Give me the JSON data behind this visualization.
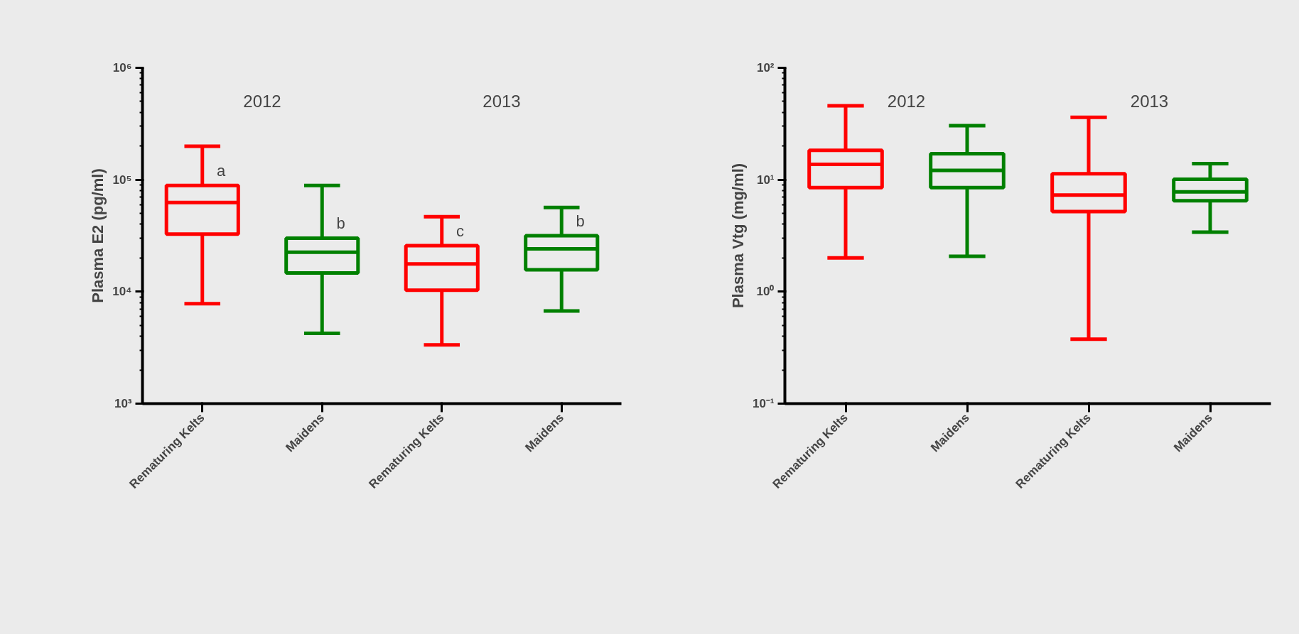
{
  "chart_data": [
    {
      "type": "box",
      "ylabel": "Plasma E2 (pg/ml)",
      "log": "y",
      "grid": false,
      "categories": [
        "Rematuring Kelts",
        "Maidens",
        "Rematuring Kelts",
        "Maidens"
      ],
      "colors": [
        "#ff0000",
        "#008000",
        "#ff0000",
        "#008000"
      ],
      "boxes": [
        {
          "low": 7800,
          "q1": 32700,
          "median": 62500,
          "q3": 89000,
          "high": 199000
        },
        {
          "low": 4250,
          "q1": 14700,
          "median": 22500,
          "q3": 30100,
          "high": 89000
        },
        {
          "low": 3350,
          "q1": 10300,
          "median": 17700,
          "q3": 25800,
          "high": 46800
        },
        {
          "low": 6730,
          "q1": 15700,
          "median": 24100,
          "q3": 31600,
          "high": 56500
        }
      ],
      "ylim": [
        1000,
        1000000
      ],
      "yticks": [
        {
          "value": 1000,
          "label": "10³"
        },
        {
          "value": 10000,
          "label": "10⁴"
        },
        {
          "value": 100000,
          "label": "10⁵"
        },
        {
          "value": 1000000,
          "label": "10⁶"
        }
      ],
      "annotations": [
        "2012",
        "2013",
        "a",
        "b",
        "c",
        "b"
      ]
    },
    {
      "type": "box",
      "ylabel": "Plasma Vtg (mg/ml)",
      "log": "y",
      "grid": false,
      "categories": [
        "Rematuring Kelts",
        "Maidens",
        "Rematuring Kelts",
        "Maidens"
      ],
      "colors": [
        "#ff0000",
        "#008000",
        "#ff0000",
        "#008000"
      ],
      "boxes": [
        {
          "low": 2.0,
          "q1": 8.5,
          "median": 13.7,
          "q3": 18.3,
          "high": 45.8
        },
        {
          "low": 2.07,
          "q1": 8.5,
          "median": 12.1,
          "q3": 17.1,
          "high": 30.4
        },
        {
          "low": 0.377,
          "q1": 5.2,
          "median": 7.3,
          "q3": 11.3,
          "high": 36.1
        },
        {
          "low": 3.4,
          "q1": 6.5,
          "median": 7.8,
          "q3": 10.1,
          "high": 13.9
        }
      ],
      "ylim": [
        0.1,
        100
      ],
      "yticks": [
        {
          "value": 0.1,
          "label": "10⁻¹"
        },
        {
          "value": 1,
          "label": "10⁰"
        },
        {
          "value": 10,
          "label": "10¹"
        },
        {
          "value": 100,
          "label": "10²"
        }
      ],
      "annotations": [
        "2012",
        "2013"
      ]
    }
  ]
}
